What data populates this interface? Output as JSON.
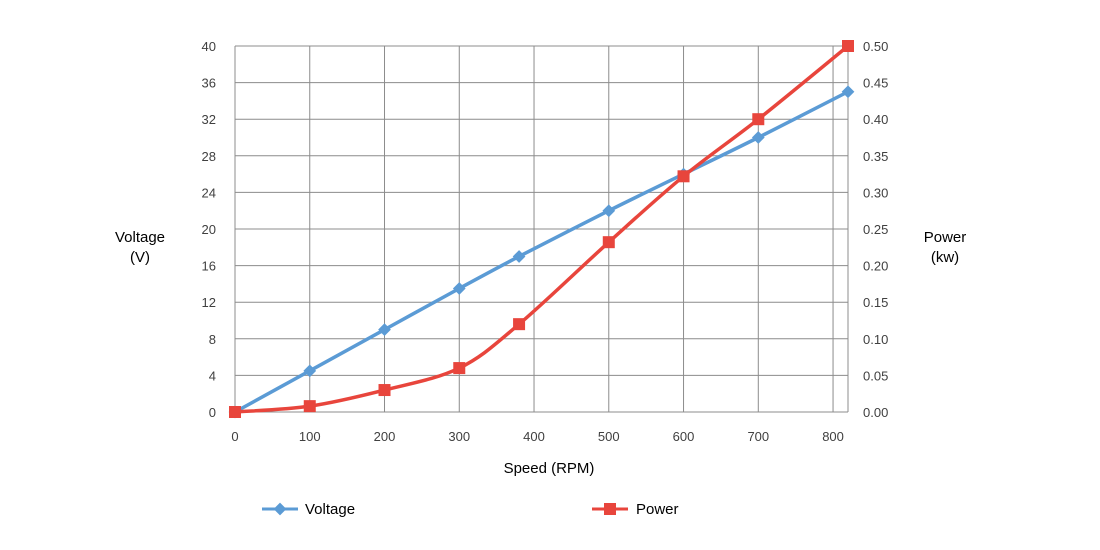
{
  "chart_data": {
    "type": "line",
    "title": "",
    "xlabel": "Speed (RPM)",
    "xlim": [
      0,
      820
    ],
    "xticks": [
      0,
      100,
      200,
      300,
      400,
      500,
      600,
      700,
      800
    ],
    "grid": true,
    "legend_position": "bottom",
    "y_left": {
      "label_lines": [
        "Voltage",
        "(V)"
      ],
      "lim": [
        0,
        40
      ],
      "ticks": [
        0,
        4,
        8,
        12,
        16,
        20,
        24,
        28,
        32,
        36,
        40
      ]
    },
    "y_right": {
      "label_lines": [
        "Power",
        "(kw)"
      ],
      "lim": [
        0,
        0.5
      ],
      "ticks": [
        "0.00",
        "0.05",
        "0.10",
        "0.15",
        "0.20",
        "0.25",
        "0.30",
        "0.35",
        "0.40",
        "0.45",
        "0.50"
      ]
    },
    "series": [
      {
        "name": "Voltage",
        "axis": "left",
        "color": "#5b9bd5",
        "marker": "diamond",
        "x": [
          0,
          100,
          200,
          300,
          380,
          500,
          600,
          700,
          820
        ],
        "y": [
          0,
          4.5,
          9,
          13.5,
          17,
          22,
          26,
          30,
          35
        ]
      },
      {
        "name": "Power",
        "axis": "right",
        "color": "#e8453c",
        "marker": "square",
        "x": [
          0,
          100,
          200,
          300,
          380,
          500,
          600,
          700,
          820
        ],
        "y": [
          0,
          0.008,
          0.03,
          0.06,
          0.12,
          0.232,
          0.322,
          0.4,
          0.5
        ]
      }
    ]
  }
}
